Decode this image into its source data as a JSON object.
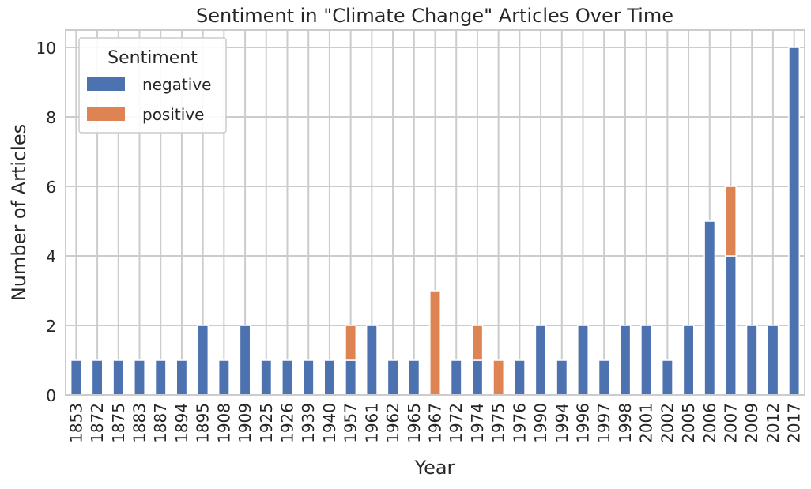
{
  "chart_data": {
    "type": "bar",
    "stacked": true,
    "title": "Sentiment in \"Climate Change\" Articles Over Time",
    "xlabel": "Year",
    "ylabel": "Number of Articles",
    "ylim": [
      0,
      10.5
    ],
    "yticks": [
      "0",
      "2",
      "4",
      "6",
      "8",
      "10"
    ],
    "categories": [
      "1853",
      "1872",
      "1875",
      "1883",
      "1887",
      "1894",
      "1895",
      "1908",
      "1909",
      "1925",
      "1926",
      "1939",
      "1940",
      "1957",
      "1961",
      "1962",
      "1965",
      "1967",
      "1972",
      "1974",
      "1975",
      "1976",
      "1990",
      "1994",
      "1996",
      "1997",
      "1998",
      "2001",
      "2002",
      "2005",
      "2006",
      "2007",
      "2009",
      "2012",
      "2017"
    ],
    "series": [
      {
        "name": "negative",
        "color": "#4c72b0",
        "values": [
          1,
          1,
          1,
          1,
          1,
          1,
          2,
          1,
          2,
          1,
          1,
          1,
          1,
          1,
          2,
          1,
          1,
          0,
          1,
          1,
          0,
          1,
          2,
          1,
          2,
          1,
          2,
          2,
          1,
          2,
          5,
          4,
          2,
          2,
          10
        ]
      },
      {
        "name": "positive",
        "color": "#dd8452",
        "values": [
          0,
          0,
          0,
          0,
          0,
          0,
          0,
          0,
          0,
          0,
          0,
          0,
          0,
          1,
          0,
          0,
          0,
          3,
          0,
          1,
          1,
          0,
          0,
          0,
          0,
          0,
          0,
          0,
          0,
          0,
          0,
          2,
          0,
          0,
          0
        ]
      }
    ],
    "legend": {
      "title": "Sentiment",
      "placement": "top-left"
    },
    "grid": true
  }
}
